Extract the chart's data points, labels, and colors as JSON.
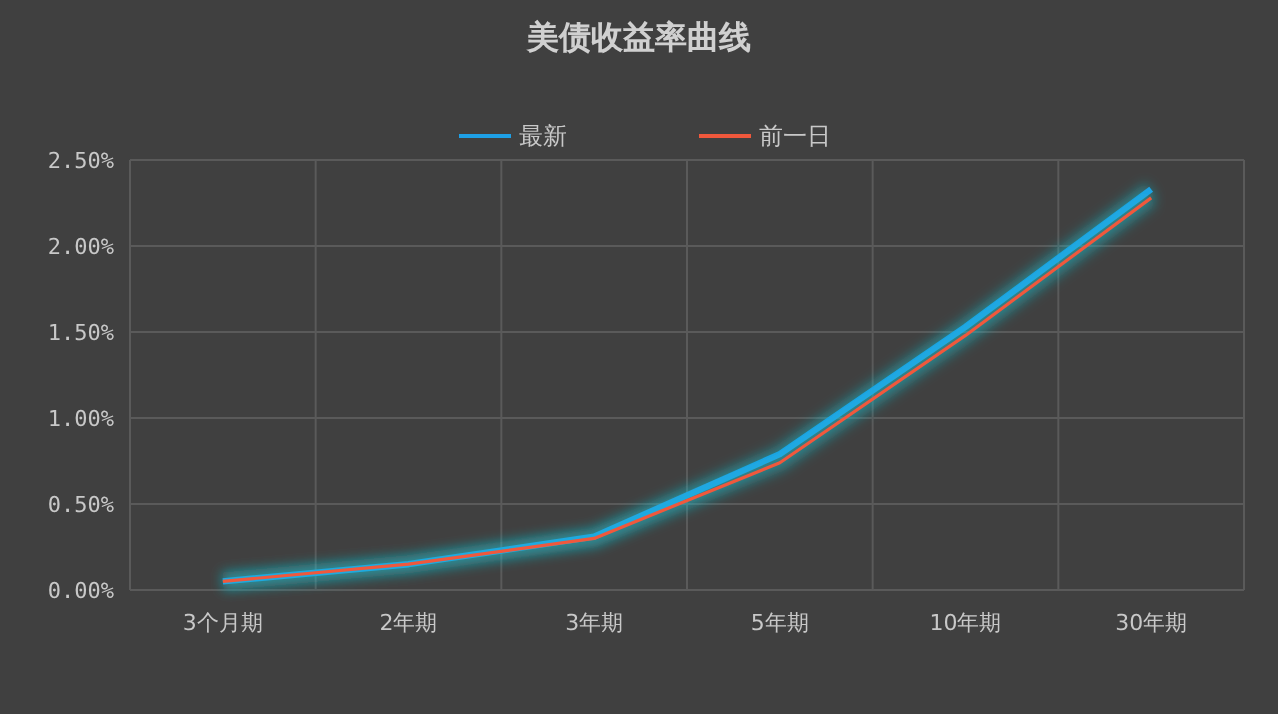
{
  "chart_data": {
    "type": "line",
    "title": "美债收益率曲线",
    "categories": [
      "3个月期",
      "2年期",
      "3年期",
      "5年期",
      "10年期",
      "30年期"
    ],
    "series": [
      {
        "name": "最新",
        "color": "#1ea0e6",
        "values": [
          0.05,
          0.15,
          0.31,
          0.79,
          1.53,
          2.33
        ]
      },
      {
        "name": "前一日",
        "color": "#f0583c",
        "values": [
          0.05,
          0.15,
          0.3,
          0.74,
          1.48,
          2.28
        ]
      }
    ],
    "ylim": [
      0,
      2.5
    ],
    "yticks": [
      {
        "value": 0,
        "label": "0.00%"
      },
      {
        "value": 0.5,
        "label": "0.50%"
      },
      {
        "value": 1,
        "label": "1.00%"
      },
      {
        "value": 1.5,
        "label": "1.50%"
      },
      {
        "value": 2,
        "label": "2.00%"
      },
      {
        "value": 2.5,
        "label": "2.50%"
      }
    ],
    "grid": true,
    "legend": "top",
    "marker": "none",
    "line_style": "solid"
  }
}
